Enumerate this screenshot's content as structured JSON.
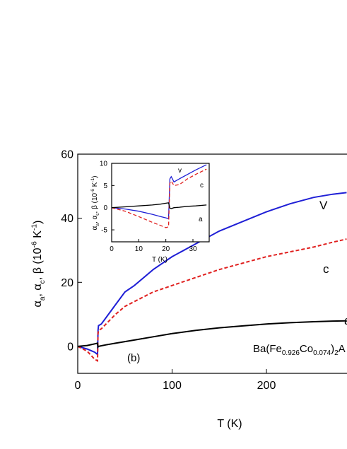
{
  "chart_data": [
    {
      "type": "line",
      "x_label": "T (K)",
      "y_label_parts": [
        "α",
        "a",
        ", α",
        "c",
        ", β (10",
        "-6",
        " K",
        "-1",
        ")"
      ],
      "annotation": "(b)",
      "formula_parts": [
        "Ba(Fe",
        "0.926",
        "Co",
        "0.074",
        ")",
        "2",
        "A"
      ],
      "xlim": [
        0,
        285
      ],
      "xticks": [
        0,
        100,
        200
      ],
      "ylim": [
        -8.4,
        60
      ],
      "yticks": [
        0,
        20,
        40,
        60
      ],
      "series": [
        {
          "name": "V",
          "color": "#1f1fd6",
          "dashed": false,
          "x": [
            0,
            10,
            18,
            21,
            21.5,
            22,
            25,
            30,
            40,
            50,
            60,
            80,
            100,
            125,
            150,
            175,
            200,
            225,
            250,
            270,
            285
          ],
          "values": [
            0,
            -0.8,
            -1.8,
            -2.5,
            5,
            6.5,
            7,
            9,
            13,
            17,
            19,
            24,
            28,
            32,
            36,
            39,
            42,
            44.5,
            46.5,
            47.5,
            48
          ]
        },
        {
          "name": "c",
          "color": "#e0201f",
          "dashed": true,
          "x": [
            0,
            10,
            18,
            21,
            21.5,
            22,
            25,
            30,
            40,
            50,
            60,
            80,
            100,
            125,
            150,
            175,
            200,
            225,
            250,
            270,
            285
          ],
          "values": [
            0,
            -1.5,
            -4,
            -4.5,
            4,
            5,
            5.5,
            7,
            10,
            12.5,
            14,
            17,
            19,
            21.5,
            24,
            26,
            28,
            29.5,
            31,
            32.5,
            33.5
          ]
        },
        {
          "name": "a",
          "color": "#000000",
          "dashed": false,
          "x": [
            0,
            10,
            18,
            21,
            21.5,
            22,
            25,
            30,
            40,
            50,
            60,
            80,
            100,
            125,
            150,
            175,
            200,
            225,
            250,
            270,
            285
          ],
          "values": [
            0,
            0.3,
            0.8,
            1,
            -0.2,
            0,
            0.2,
            0.5,
            1,
            1.5,
            2,
            3,
            4,
            5,
            5.8,
            6.4,
            7,
            7.4,
            7.7,
            7.9,
            8
          ]
        }
      ]
    },
    {
      "type": "line",
      "x_label": "T (K)",
      "y_label_parts": [
        "α",
        "a",
        ", α",
        "c",
        ", β (10",
        "-6",
        " K",
        "-1",
        ")"
      ],
      "xlim": [
        0,
        36
      ],
      "xticks": [
        0,
        10,
        20,
        30
      ],
      "ylim": [
        -7.7,
        10
      ],
      "yticks": [
        -5,
        0,
        5,
        10
      ],
      "series": [
        {
          "name": "v",
          "color": "#1f1fd6",
          "dashed": false,
          "x": [
            0,
            5,
            10,
            15,
            18,
            20,
            21,
            21.5,
            22,
            23,
            25,
            28,
            31,
            35
          ],
          "values": [
            0,
            -0.3,
            -0.8,
            -1.5,
            -2,
            -2.3,
            -2.5,
            6.5,
            7,
            5.8,
            6.5,
            7.5,
            8.5,
            9.7
          ]
        },
        {
          "name": "c",
          "color": "#e0201f",
          "dashed": true,
          "x": [
            0,
            5,
            10,
            15,
            18,
            20,
            21,
            21.5,
            22,
            23,
            25,
            28,
            31,
            35
          ],
          "values": [
            0,
            -0.8,
            -2,
            -3.3,
            -4,
            -4.5,
            -4.3,
            5.5,
            6,
            5,
            5.2,
            6.5,
            7.5,
            8.7
          ]
        },
        {
          "name": "a",
          "color": "#000000",
          "dashed": false,
          "x": [
            0,
            5,
            10,
            15,
            18,
            20,
            21,
            21.5,
            22,
            23,
            25,
            28,
            31,
            35
          ],
          "values": [
            0,
            0.2,
            0.4,
            0.6,
            0.8,
            1,
            1.1,
            -0.1,
            -0.2,
            0,
            0.1,
            0.3,
            0.4,
            0.6
          ]
        }
      ]
    }
  ]
}
